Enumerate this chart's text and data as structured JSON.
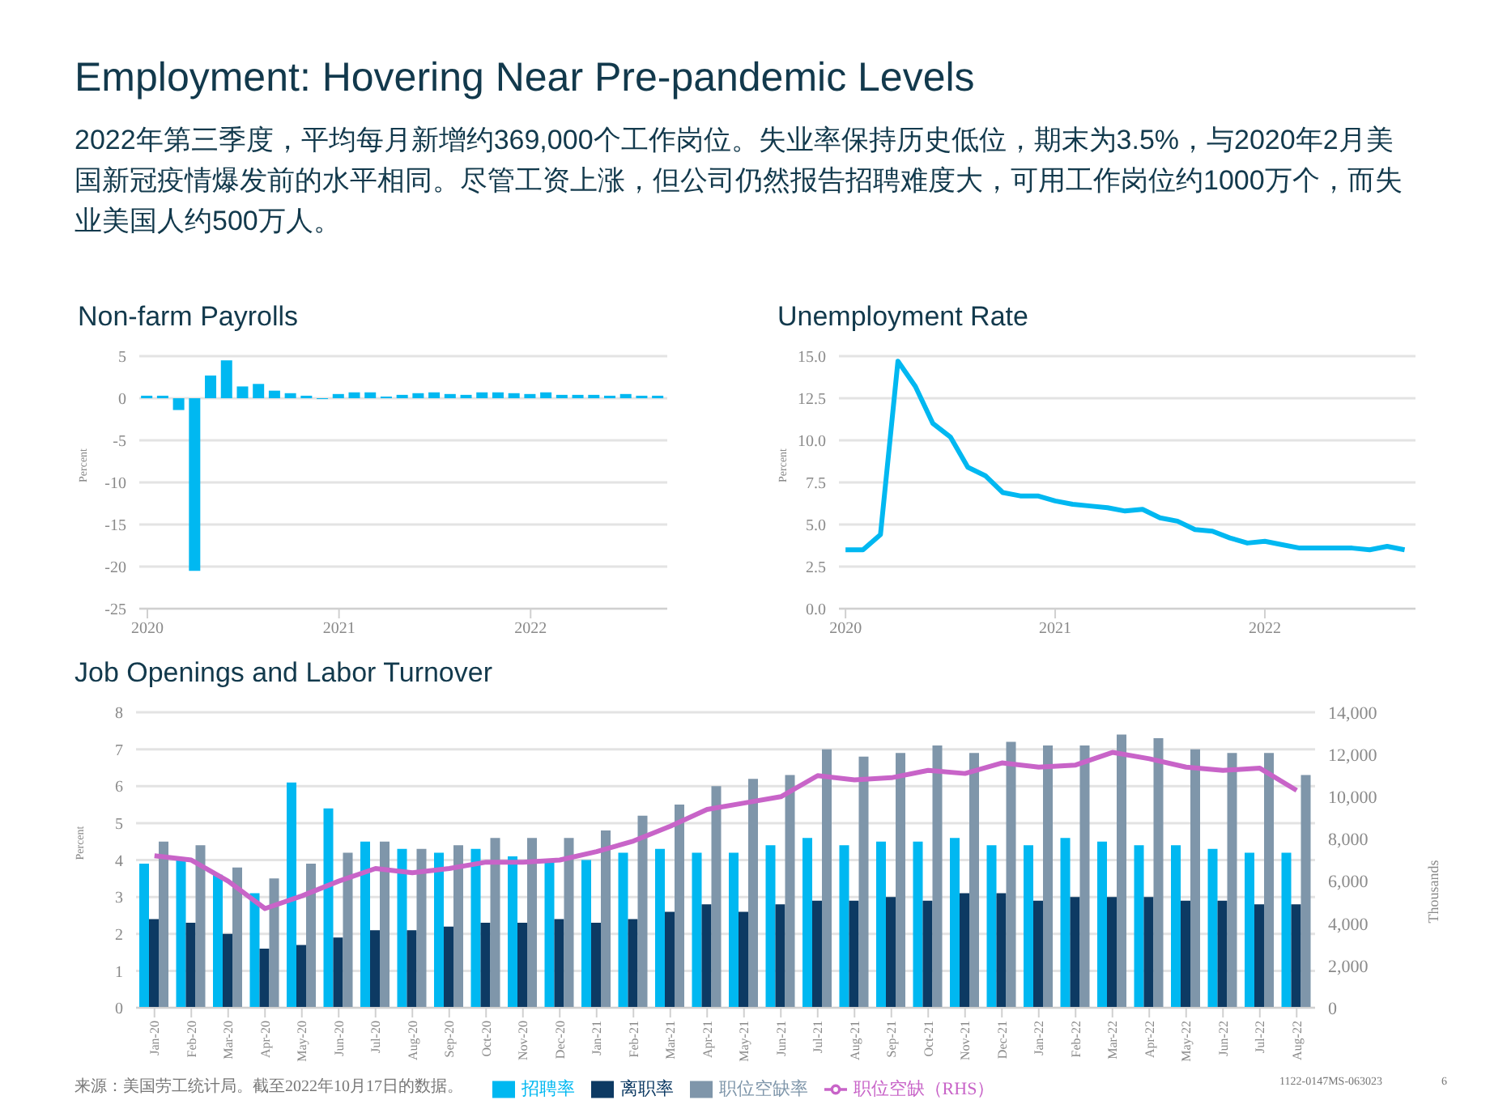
{
  "chart_data": [
    {
      "type": "bar",
      "title": "Non-farm Payrolls",
      "ylabel": "Percent",
      "annotations": [
        "Employment: Hovering Near Pre-pandemic Levels",
        "2022年第三季度，平均每月新增约369,000个工作岗位。失业率保持历史低位，期末为3.5%，与2020年2月美国新冠疫情爆发前的水平相同。尽管工资上涨，但公司仍然报告招聘难度大，可用工作岗位约1000万个，而失业美国人约500万人。"
      ],
      "x": [
        "2020-01",
        "2020-02",
        "2020-03",
        "2020-04",
        "2020-05",
        "2020-06",
        "2020-07",
        "2020-08",
        "2020-09",
        "2020-10",
        "2020-11",
        "2020-12",
        "2021-01",
        "2021-02",
        "2021-03",
        "2021-04",
        "2021-05",
        "2021-06",
        "2021-07",
        "2021-08",
        "2021-09",
        "2021-10",
        "2021-11",
        "2021-12",
        "2022-01",
        "2022-02",
        "2022-03",
        "2022-04",
        "2022-05",
        "2022-06",
        "2022-07",
        "2022-08",
        "2022-09"
      ],
      "values": [
        0.3,
        0.3,
        -1.4,
        -20.5,
        2.7,
        4.5,
        1.4,
        1.7,
        0.9,
        0.6,
        0.3,
        -0.1,
        0.5,
        0.7,
        0.7,
        0.2,
        0.4,
        0.6,
        0.7,
        0.5,
        0.4,
        0.7,
        0.7,
        0.6,
        0.5,
        0.7,
        0.4,
        0.4,
        0.4,
        0.3,
        0.5,
        0.3,
        0.3
      ],
      "color": "#00b8f1",
      "xlim": [
        "2019-12-16",
        "2022-09-18"
      ],
      "xticks": [
        "2020",
        "2021",
        "2022"
      ],
      "ylim": [
        -25,
        5
      ],
      "yticks": [
        -25,
        -20,
        -15,
        -10,
        -5,
        0,
        5
      ],
      "grid": "y",
      "legend": false
    },
    {
      "type": "line",
      "title": "Unemployment Rate",
      "ylabel": "Percent",
      "x": [
        "2020-01",
        "2020-02",
        "2020-03",
        "2020-04",
        "2020-05",
        "2020-06",
        "2020-07",
        "2020-08",
        "2020-09",
        "2020-10",
        "2020-11",
        "2020-12",
        "2021-01",
        "2021-02",
        "2021-03",
        "2021-04",
        "2021-05",
        "2021-06",
        "2021-07",
        "2021-08",
        "2021-09",
        "2021-10",
        "2021-11",
        "2021-12",
        "2022-01",
        "2022-02",
        "2022-03",
        "2022-04",
        "2022-05",
        "2022-06",
        "2022-07",
        "2022-08",
        "2022-09"
      ],
      "values": [
        3.5,
        3.5,
        4.4,
        14.7,
        13.2,
        11.0,
        10.2,
        8.4,
        7.9,
        6.9,
        6.7,
        6.7,
        6.4,
        6.2,
        6.1,
        6.0,
        5.8,
        5.9,
        5.4,
        5.2,
        4.7,
        4.6,
        4.2,
        3.9,
        4.0,
        3.8,
        3.6,
        3.6,
        3.6,
        3.6,
        3.5,
        3.7,
        3.5
      ],
      "color": "#00b8f1",
      "xlim": [
        "2019-12-20",
        "2022-09-20"
      ],
      "xticks": [
        "2020",
        "2021",
        "2022"
      ],
      "ylim": [
        0,
        15
      ],
      "yticks": [
        {
          "value": 0,
          "label": "0.0"
        },
        {
          "value": 2.5,
          "label": "2.5"
        },
        {
          "value": 5,
          "label": "5.0"
        },
        {
          "value": 7.5,
          "label": "7.5"
        },
        {
          "value": 10,
          "label": "10.0"
        },
        {
          "value": 12.5,
          "label": "12.5"
        },
        {
          "value": 15,
          "label": "15.0"
        }
      ],
      "grid": "y",
      "legend": false
    },
    {
      "type": "bar",
      "title": "Job Openings and Labor Turnover",
      "ylabel": "Percent",
      "y2label": "Thousands",
      "annotations": [
        "来源：美国劳工统计局。截至2022年10月17日的数据。",
        "1122-0147MS-063023",
        "6"
      ],
      "categories": [
        "Jan-20",
        "Feb-20",
        "Mar-20",
        "Apr-20",
        "May-20",
        "Jun-20",
        "Jul-20",
        "Aug-20",
        "Sep-20",
        "Oct-20",
        "Nov-20",
        "Dec-20",
        "Jan-21",
        "Feb-21",
        "Mar-21",
        "Apr-21",
        "May-21",
        "Jun-21",
        "Jul-21",
        "Aug-21",
        "Sep-21",
        "Oct-21",
        "Nov-21",
        "Dec-21",
        "Jan-22",
        "Feb-22",
        "Mar-22",
        "Apr-22",
        "May-22",
        "Jun-22",
        "Jul-22",
        "Aug-22"
      ],
      "series": [
        {
          "name": "招聘率",
          "color": "#00b8f1",
          "values": [
            3.9,
            4.0,
            3.6,
            3.1,
            6.1,
            5.4,
            4.5,
            4.3,
            4.2,
            4.3,
            4.1,
            4.0,
            4.0,
            4.2,
            4.3,
            4.2,
            4.2,
            4.4,
            4.6,
            4.4,
            4.5,
            4.5,
            4.6,
            4.4,
            4.4,
            4.6,
            4.5,
            4.4,
            4.4,
            4.3,
            4.2,
            4.2
          ]
        },
        {
          "name": "离职率",
          "color": "#0d3a63",
          "values": [
            2.4,
            2.3,
            2.0,
            1.6,
            1.7,
            1.9,
            2.1,
            2.1,
            2.2,
            2.3,
            2.3,
            2.4,
            2.3,
            2.4,
            2.6,
            2.8,
            2.6,
            2.8,
            2.9,
            2.9,
            3.0,
            2.9,
            3.1,
            3.1,
            2.9,
            3.0,
            3.0,
            3.0,
            2.9,
            2.9,
            2.8,
            2.8
          ]
        },
        {
          "name": "职位空缺率",
          "color": "#7f96aa",
          "values": [
            4.5,
            4.4,
            3.8,
            3.5,
            3.9,
            4.2,
            4.5,
            4.3,
            4.4,
            4.6,
            4.6,
            4.6,
            4.8,
            5.2,
            5.5,
            6.0,
            6.2,
            6.3,
            7.0,
            6.8,
            6.9,
            7.1,
            6.9,
            7.2,
            7.1,
            7.1,
            7.4,
            7.3,
            7.0,
            6.9,
            6.9,
            6.3
          ]
        },
        {
          "name": "职位空缺（RHS）",
          "type": "line",
          "axis": "y2",
          "color": "#c864c8",
          "values": [
            7200,
            7000,
            6000,
            4700,
            5300,
            6000,
            6600,
            6400,
            6600,
            6900,
            6900,
            7000,
            7400,
            7900,
            8600,
            9400,
            9700,
            10000,
            11000,
            10800,
            10900,
            11250,
            11100,
            11600,
            11400,
            11500,
            12100,
            11800,
            11400,
            11250,
            11350,
            10300
          ]
        }
      ],
      "ylim": [
        0,
        8
      ],
      "yticks": [
        0,
        1,
        2,
        3,
        4,
        5,
        6,
        7,
        8
      ],
      "y2lim": [
        0,
        14000
      ],
      "y2ticks": [
        0,
        {
          "value": 2000,
          "label": "2,000"
        },
        {
          "value": 4000,
          "label": "4,000"
        },
        {
          "value": 6000,
          "label": "6,000"
        },
        {
          "value": 8000,
          "label": "8,000"
        },
        {
          "value": 10000,
          "label": "10,000"
        },
        {
          "value": 12000,
          "label": "12,000"
        },
        {
          "value": 14000,
          "label": "14,000"
        }
      ],
      "grid": "y",
      "legend": "bottom"
    }
  ]
}
